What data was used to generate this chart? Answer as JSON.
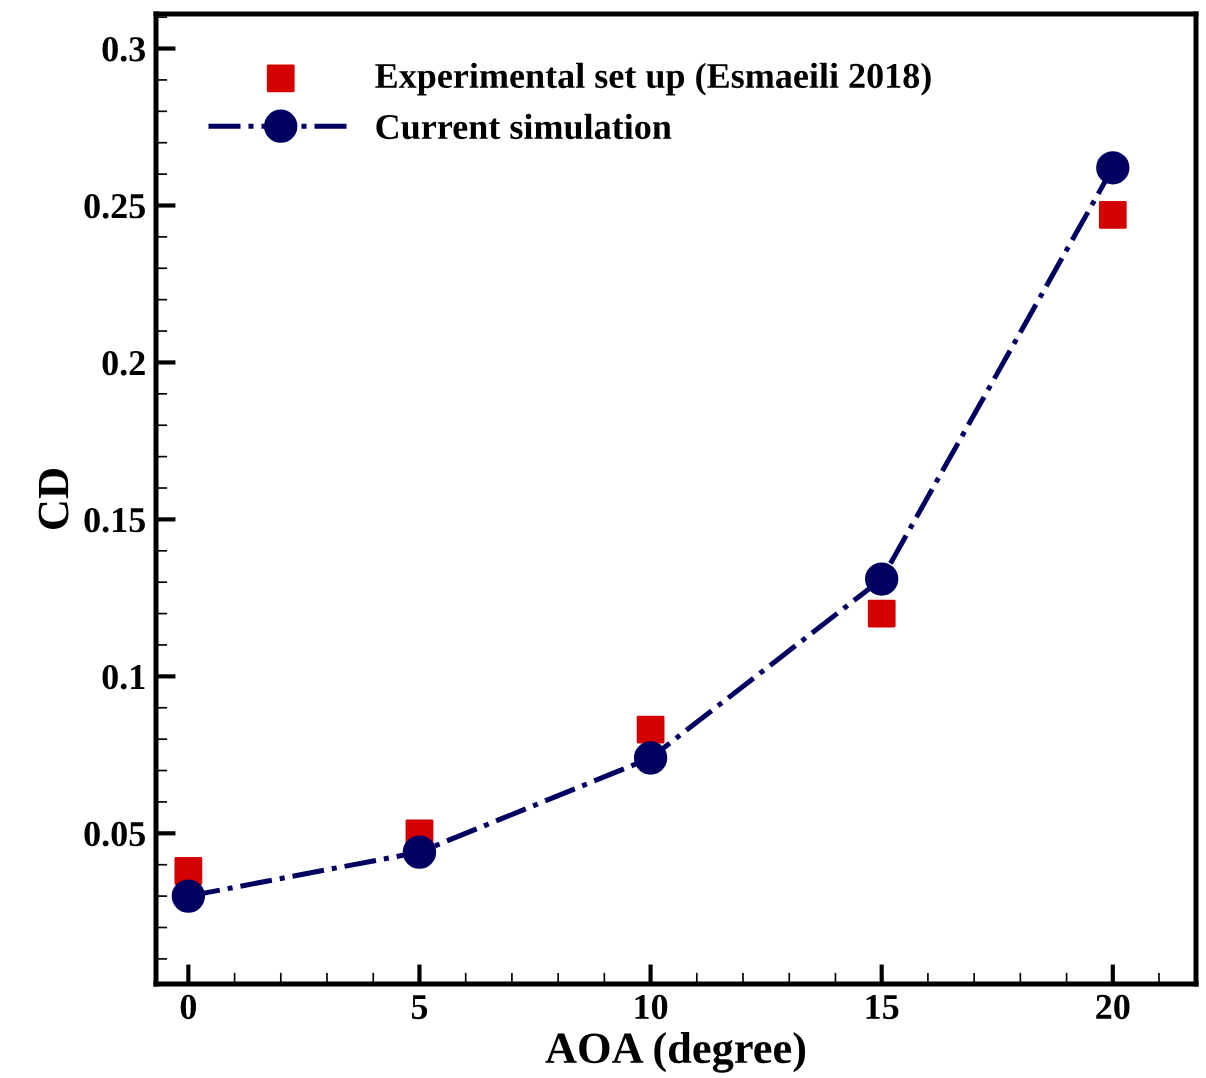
{
  "chart_data": {
    "type": "line",
    "xlabel": "AOA (degree)",
    "ylabel": "CD",
    "x": [
      0,
      5,
      10,
      15,
      20
    ],
    "series": [
      {
        "name": "Experimental set up (Esmaeili 2018)",
        "type": "scatter",
        "color": "#d40000",
        "marker": "square",
        "values": [
          0.038,
          0.05,
          0.083,
          0.12,
          0.247
        ]
      },
      {
        "name": "Current simulation",
        "color": "#000060",
        "marker": "circle",
        "line_style": "dashdot",
        "values": [
          0.03,
          0.044,
          0.074,
          0.131,
          0.262
        ]
      }
    ],
    "xlim": [
      -0.7,
      21.8
    ],
    "xticks": [
      0,
      5,
      10,
      15,
      20
    ],
    "ylim": [
      0.002,
      0.311
    ],
    "yticks": [
      0.05,
      0.1,
      0.15,
      0.2,
      0.25,
      0.3
    ],
    "grid": false,
    "legend": "top left"
  }
}
